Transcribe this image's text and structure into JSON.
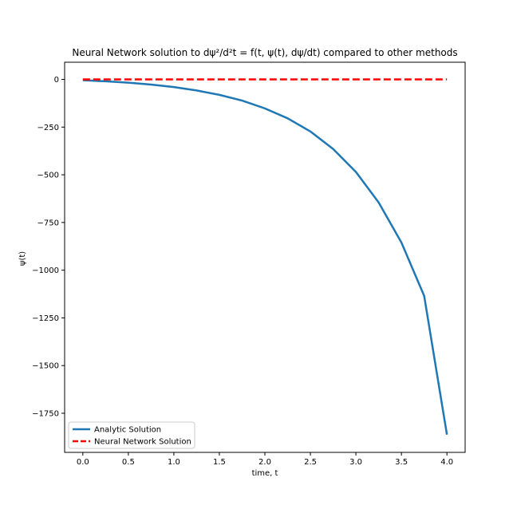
{
  "chart_data": {
    "type": "line",
    "title": "Neural Network solution to dψ²/d²t = f(t, ψ(t), dψ/dt) compared to other methods",
    "xlabel": "time, t",
    "ylabel": "ψ(t)",
    "xlim": [
      -0.2,
      4.2
    ],
    "ylim": [
      -1955,
      90
    ],
    "xticks": [
      0.0,
      0.5,
      1.0,
      1.5,
      2.0,
      2.5,
      3.0,
      3.5,
      4.0
    ],
    "xtick_labels": [
      "0.0",
      "0.5",
      "1.0",
      "1.5",
      "2.0",
      "2.5",
      "3.0",
      "3.5",
      "4.0"
    ],
    "yticks": [
      0,
      -250,
      -500,
      -750,
      -1000,
      -1250,
      -1500,
      -1750
    ],
    "ytick_labels": [
      "0",
      "−250",
      "−500",
      "−750",
      "−1000",
      "−1250",
      "−1500",
      "−1750"
    ],
    "grid": false,
    "legend_position": "lower-left",
    "series": [
      {
        "name": "Analytic Solution",
        "color": "#1f77b4",
        "style": "solid",
        "x": [
          0.0,
          0.25,
          0.5,
          0.75,
          1.0,
          1.25,
          1.5,
          1.75,
          2.0,
          2.25,
          2.5,
          2.75,
          3.0,
          3.25,
          3.5,
          3.75,
          4.0
        ],
        "values": [
          -4,
          -10,
          -17,
          -27,
          -40,
          -58,
          -81,
          -111,
          -152,
          -204,
          -273,
          -365,
          -485,
          -645,
          -855,
          -1135,
          -1862
        ]
      },
      {
        "name": "Neural Network Solution",
        "color": "#ff0000",
        "style": "dashed",
        "x": [
          0.0,
          4.0
        ],
        "values": [
          0,
          0
        ]
      }
    ]
  }
}
